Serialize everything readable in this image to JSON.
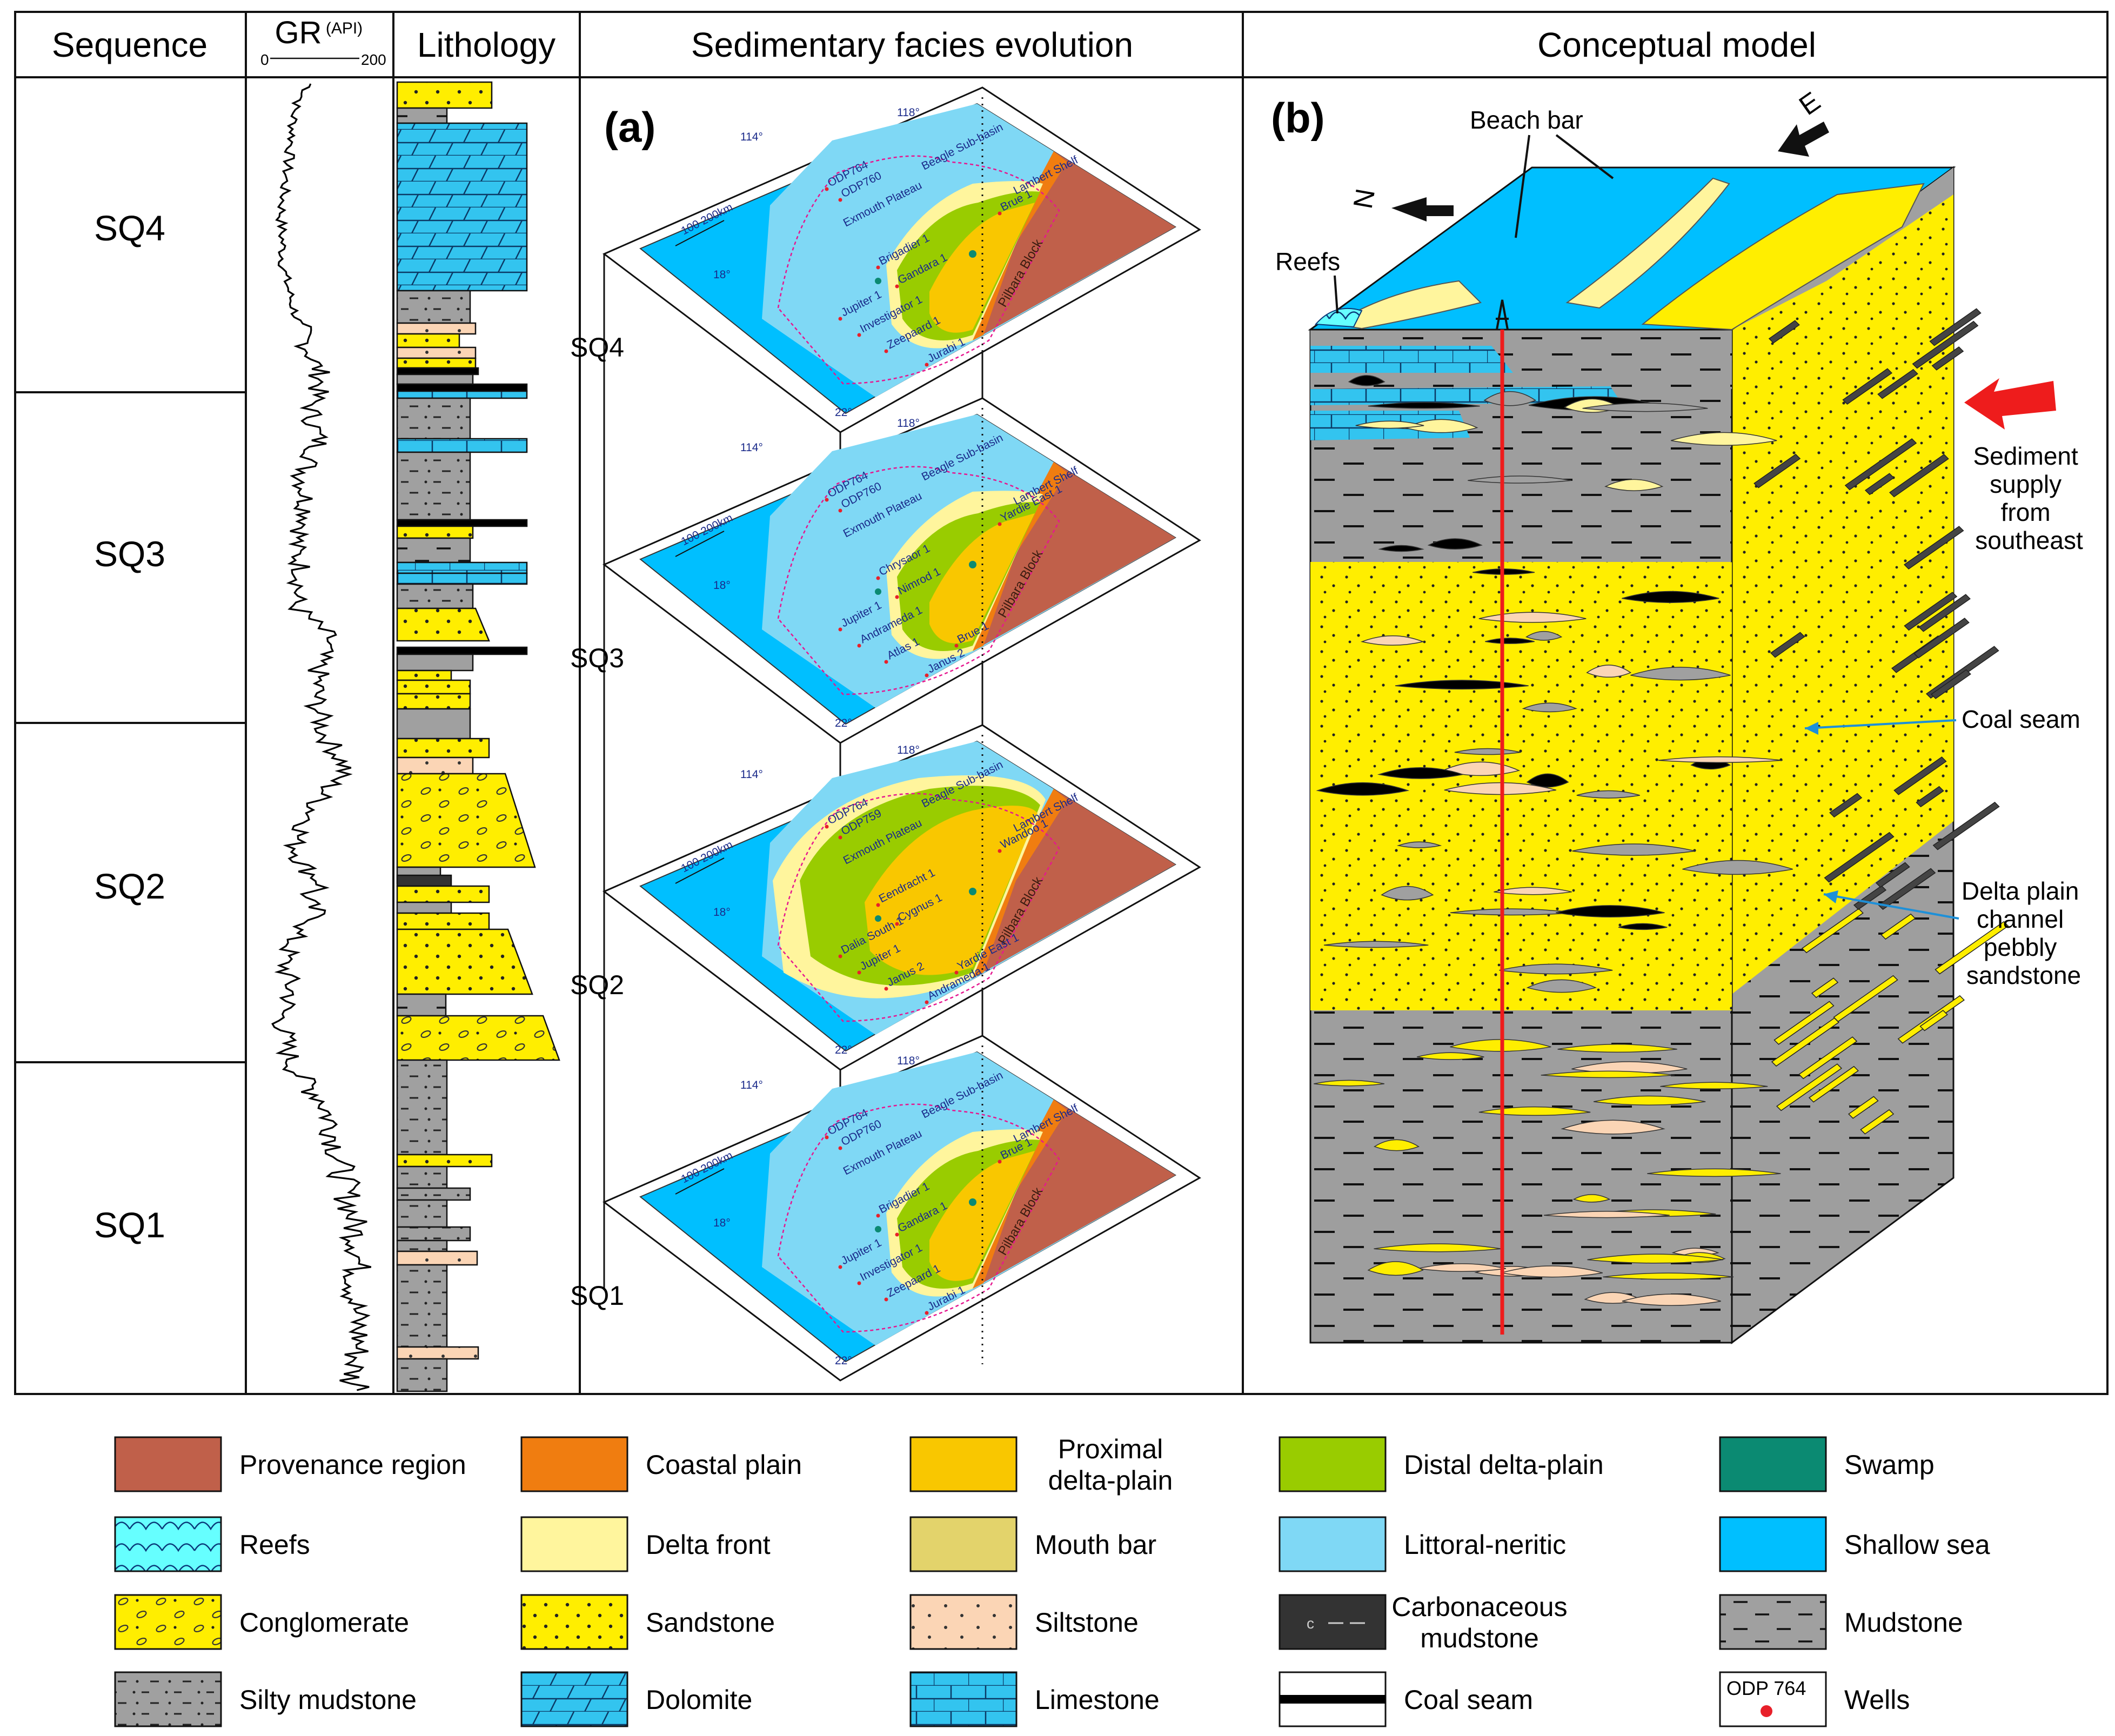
{
  "headers": {
    "sequence": "Sequence",
    "gr": "GR",
    "gr_unit": "(API)",
    "gr_min": "0",
    "gr_max": "200",
    "lithology": "Lithology",
    "facies": "Sedimentary facies evolution",
    "model": "Conceptual model"
  },
  "sequences": [
    "SQ4",
    "SQ3",
    "SQ2",
    "SQ1"
  ],
  "panel_a": {
    "label": "(a)",
    "slabs": [
      {
        "name": "SQ4",
        "wells": [
          "ODP764",
          "ODP760",
          "Jupiter 1",
          "Investigator 1",
          "Zeepaard 1",
          "Jurabi 1",
          "Brigadier 1",
          "Gandara 1",
          "Brue 1"
        ]
      },
      {
        "name": "SQ3",
        "wells": [
          "ODP764",
          "ODP760",
          "Jupiter 1",
          "Andrameda 1",
          "Atlas 1",
          "Janus 2",
          "Chrysaor 1",
          "Nimrod 1",
          "Yardie East 1",
          "Brue 1"
        ]
      },
      {
        "name": "SQ2",
        "wells": [
          "ODP764",
          "ODP759",
          "Dalia South 1",
          "Jupiter 1",
          "Janus 2",
          "Andrameda 1",
          "Eendracht 1",
          "Cygnus 1",
          "Wandoo 1",
          "Yardie East 1"
        ]
      },
      {
        "name": "SQ1",
        "wells": [
          "ODP764",
          "ODP760",
          "Jupiter 1",
          "Investigator 1",
          "Zeepaard 1",
          "Jurabi 1",
          "Brigadier 1",
          "Gandara 1",
          "Brue 1"
        ]
      }
    ],
    "map_labels": {
      "plateau": "Exmouth Plateau",
      "beagle": "Beagle Sub-basin",
      "lambert": "Lambert Shelf",
      "pilbara": "Pilbara Block",
      "scale": "100  200km",
      "lon1": "114°",
      "lon2": "118°",
      "lat1": "18°",
      "lat2": "22°"
    }
  },
  "panel_b": {
    "label": "(b)",
    "annotations": {
      "beach_bar": "Beach bar",
      "reefs": "Reefs",
      "n": "N",
      "e": "E",
      "sediment": [
        "Sediment",
        "supply",
        "from",
        "southeast"
      ],
      "coal": "Coal seam",
      "delta": [
        "Delta plain",
        "channel",
        "pebbly",
        "sandstone"
      ]
    }
  },
  "legend": [
    {
      "label": [
        "Provenance  region"
      ],
      "swatch": "provenance",
      "color": "#c0604a"
    },
    {
      "label": [
        "Coastal plain"
      ],
      "swatch": "coastal",
      "color": "#f07d10"
    },
    {
      "label": [
        "Proximal",
        "delta-plain"
      ],
      "swatch": "proximal",
      "color": "#f9c700"
    },
    {
      "label": [
        "Distal delta-plain"
      ],
      "swatch": "distal",
      "color": "#99cc00"
    },
    {
      "label": [
        "Swamp"
      ],
      "swatch": "swamp",
      "color": "#0b8a72"
    },
    {
      "label": [
        "Reefs"
      ],
      "swatch": "reefs",
      "color": "#66ffff"
    },
    {
      "label": [
        "Delta front"
      ],
      "swatch": "deltafront",
      "color": "#fff59d"
    },
    {
      "label": [
        "Mouth bar"
      ],
      "swatch": "mouthbar",
      "color": "#e3d36b"
    },
    {
      "label": [
        "Littoral-neritic"
      ],
      "swatch": "littoral",
      "color": "#7fd8f5"
    },
    {
      "label": [
        "Shallow sea"
      ],
      "swatch": "shallow",
      "color": "#00bfff"
    },
    {
      "label": [
        "Conglomerate"
      ],
      "swatch": "conglomerate",
      "color": "#ffee00"
    },
    {
      "label": [
        "Sandstone"
      ],
      "swatch": "sandstone",
      "color": "#ffee00"
    },
    {
      "label": [
        "Siltstone"
      ],
      "swatch": "siltstone",
      "color": "#fbd5b5"
    },
    {
      "label": [
        "Carbonaceous",
        "mudstone"
      ],
      "swatch": "carbonaceous",
      "color": "#333333"
    },
    {
      "label": [
        "Mudstone"
      ],
      "swatch": "mudstone",
      "color": "#a0a0a0"
    },
    {
      "label": [
        "Silty mudstone"
      ],
      "swatch": "siltymud",
      "color": "#a0a0a0"
    },
    {
      "label": [
        "Dolomite"
      ],
      "swatch": "dolomite",
      "color": "#33c4ef"
    },
    {
      "label": [
        "Limestone"
      ],
      "swatch": "limestone",
      "color": "#33c4ef"
    },
    {
      "label": [
        "Coal seam"
      ],
      "swatch": "coal",
      "color": "#000000"
    },
    {
      "label": [
        "Wells"
      ],
      "swatch": "wells",
      "color": "#e8202a",
      "well_text": "ODP 764"
    }
  ]
}
